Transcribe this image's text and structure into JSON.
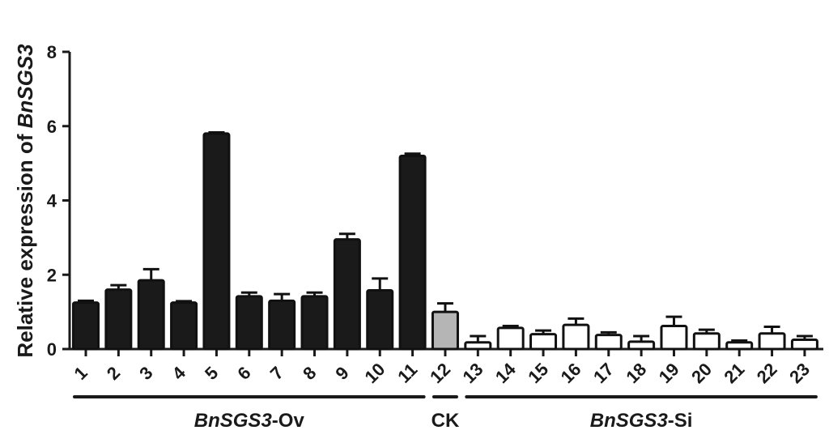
{
  "chart_data": {
    "type": "bar",
    "title": "",
    "xlabel": "",
    "ylabel": {
      "prefix": "Relative expression of ",
      "gene": "BnSGS3"
    },
    "ylim": [
      0,
      8
    ],
    "yticks": [
      "0",
      "2",
      "4",
      "6",
      "8"
    ],
    "grid": false,
    "categories": [
      "1",
      "2",
      "3",
      "4",
      "5",
      "6",
      "7",
      "8",
      "9",
      "10",
      "11",
      "12",
      "13",
      "14",
      "15",
      "16",
      "17",
      "18",
      "19",
      "20",
      "21",
      "22",
      "23"
    ],
    "values": [
      1.25,
      1.6,
      1.85,
      1.25,
      5.8,
      1.42,
      1.3,
      1.42,
      2.95,
      1.58,
      5.2,
      1.0,
      0.18,
      0.57,
      0.4,
      0.65,
      0.38,
      0.2,
      0.62,
      0.42,
      0.18,
      0.42,
      0.25
    ],
    "errors": [
      0.05,
      0.12,
      0.3,
      0.04,
      0.03,
      0.1,
      0.18,
      0.1,
      0.15,
      0.32,
      0.06,
      0.23,
      0.17,
      0.05,
      0.1,
      0.17,
      0.07,
      0.15,
      0.25,
      0.1,
      0.05,
      0.18,
      0.1
    ],
    "bar_colors": {
      "Ov": "#1a1a1a",
      "CK": "#b5b5b5",
      "Si": "#ffffff"
    },
    "groups": [
      {
        "gene": "BnSGS3",
        "suffix": "-Ov",
        "start": 1,
        "end": 11,
        "color_key": "Ov"
      },
      {
        "gene": "",
        "suffix": "CK",
        "start": 12,
        "end": 12,
        "color_key": "CK"
      },
      {
        "gene": "BnSGS3",
        "suffix": "-Si",
        "start": 13,
        "end": 23,
        "color_key": "Si"
      }
    ]
  }
}
